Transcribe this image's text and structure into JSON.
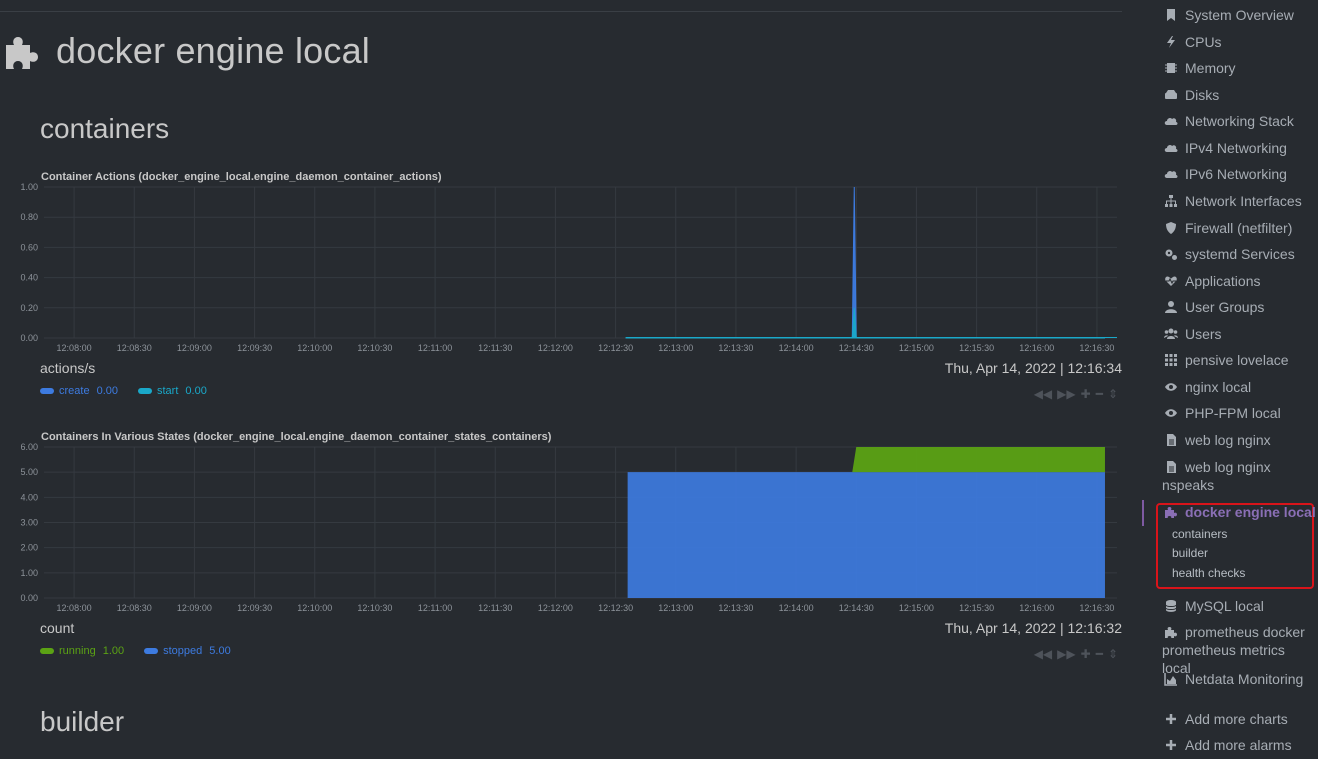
{
  "page": {
    "title": "docker engine local",
    "icon": "puzzle-icon"
  },
  "sections": {
    "containers": "containers",
    "builder": "builder"
  },
  "charts": [
    {
      "title": "Container Actions (docker_engine_local.engine_daemon_container_actions)",
      "units": "actions/s",
      "timestamp": "Thu, Apr 14, 2022 | 12:16:34",
      "legend": [
        {
          "name": "create",
          "value": "0.00",
          "color": "#3d7be0"
        },
        {
          "name": "start",
          "value": "0.00",
          "color": "#1aa8c9"
        }
      ]
    },
    {
      "title": "Containers In Various States (docker_engine_local.engine_daemon_container_states_containers)",
      "units": "count",
      "timestamp": "Thu, Apr 14, 2022 | 12:16:32",
      "legend": [
        {
          "name": "running",
          "value": "1.00",
          "color": "#5ba214"
        },
        {
          "name": "stopped",
          "value": "5.00",
          "color": "#3d7be0"
        }
      ]
    }
  ],
  "chart_data": [
    {
      "type": "area",
      "title": "Container Actions (docker_engine_local.engine_daemon_container_actions)",
      "ylabel": "actions/s",
      "ylim": [
        0,
        1
      ],
      "yticks": [
        "0.00",
        "0.20",
        "0.40",
        "0.60",
        "0.80",
        "1.00"
      ],
      "xticks": [
        "12:08:00",
        "12:08:30",
        "12:09:00",
        "12:09:30",
        "12:10:00",
        "12:10:30",
        "12:11:00",
        "12:11:30",
        "12:12:00",
        "12:12:30",
        "12:13:00",
        "12:13:30",
        "12:14:00",
        "12:14:30",
        "12:15:00",
        "12:15:30",
        "12:16:00",
        "12:16:30"
      ],
      "series": [
        {
          "name": "create",
          "color": "#3d7be0",
          "x": [
            "12:12:35",
            "12:14:28",
            "12:14:29",
            "12:14:30",
            "12:16:34"
          ],
          "values": [
            0,
            0,
            1.0,
            0,
            0
          ]
        },
        {
          "name": "start",
          "color": "#1aa8c9",
          "x": [
            "12:12:35",
            "12:14:28",
            "12:14:29",
            "12:14:30",
            "12:16:34"
          ],
          "values": [
            0,
            0,
            0.2,
            0,
            0
          ]
        }
      ],
      "grid": true
    },
    {
      "type": "area",
      "title": "Containers In Various States (docker_engine_local.engine_daemon_container_states_containers)",
      "ylabel": "count",
      "ylim": [
        0,
        6
      ],
      "yticks": [
        "0.00",
        "1.00",
        "2.00",
        "3.00",
        "4.00",
        "5.00",
        "6.00"
      ],
      "xticks": [
        "12:08:00",
        "12:08:30",
        "12:09:00",
        "12:09:30",
        "12:10:00",
        "12:10:30",
        "12:11:00",
        "12:11:30",
        "12:12:00",
        "12:12:30",
        "12:13:00",
        "12:13:30",
        "12:14:00",
        "12:14:30",
        "12:15:00",
        "12:15:30",
        "12:16:00",
        "12:16:30"
      ],
      "series": [
        {
          "name": "stopped",
          "color": "#3d7be0",
          "x": [
            "12:12:36",
            "12:16:34"
          ],
          "values": [
            5,
            5
          ]
        },
        {
          "name": "running",
          "color": "#5ba214",
          "x": [
            "12:12:36",
            "12:14:28",
            "12:14:30",
            "12:16:34"
          ],
          "values": [
            0,
            0,
            1,
            1
          ]
        }
      ],
      "grid": true
    }
  ],
  "sidebar": {
    "items": [
      {
        "label": "System Overview",
        "icon": "bookmark-icon"
      },
      {
        "label": "CPUs",
        "icon": "bolt-icon"
      },
      {
        "label": "Memory",
        "icon": "memory-icon"
      },
      {
        "label": "Disks",
        "icon": "hdd-icon"
      },
      {
        "label": "Networking Stack",
        "icon": "cloud-icon"
      },
      {
        "label": "IPv4 Networking",
        "icon": "cloud-icon"
      },
      {
        "label": "IPv6 Networking",
        "icon": "cloud-icon"
      },
      {
        "label": "Network Interfaces",
        "icon": "sitemap-icon"
      },
      {
        "label": "Firewall (netfilter)",
        "icon": "shield-icon"
      },
      {
        "label": "systemd Services",
        "icon": "cogs-icon"
      },
      {
        "label": "Applications",
        "icon": "heartbeat-icon"
      },
      {
        "label": "User Groups",
        "icon": "user-icon"
      },
      {
        "label": "Users",
        "icon": "users-icon"
      },
      {
        "label": "pensive lovelace",
        "icon": "th-icon"
      },
      {
        "label": "nginx local",
        "icon": "eye-icon"
      },
      {
        "label": "PHP-FPM local",
        "icon": "eye-icon"
      },
      {
        "label": "web log nginx",
        "icon": "file-icon"
      },
      {
        "label": "web log nginx nspeaks",
        "icon": "file-icon"
      },
      {
        "label": "docker engine local",
        "icon": "puzzle-icon"
      },
      {
        "label": "MySQL local",
        "icon": "database-icon"
      },
      {
        "label": "prometheus docker prometheus metrics local",
        "icon": "puzzle-icon"
      },
      {
        "label": "Netdata Monitoring",
        "icon": "area-chart-icon"
      },
      {
        "label": "Add more charts",
        "icon": "plus-icon"
      },
      {
        "label": "Add more alarms",
        "icon": "plus-icon"
      }
    ],
    "subitems": [
      "containers",
      "builder",
      "health checks"
    ]
  }
}
